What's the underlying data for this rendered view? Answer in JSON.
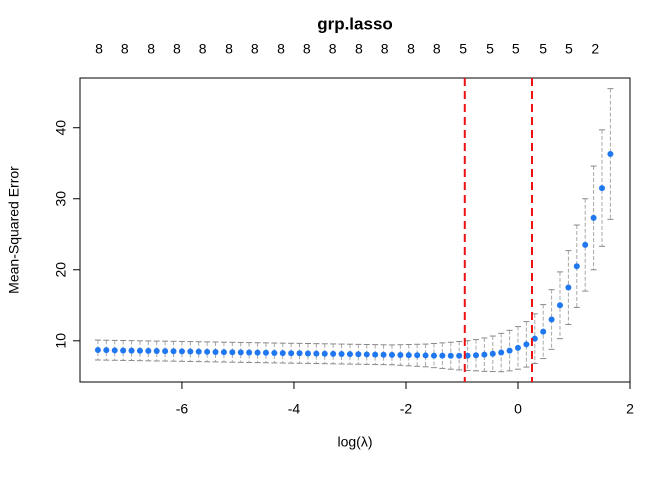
{
  "chart_data": {
    "type": "errorbar",
    "title": "grp.lasso",
    "x_label": "log(λ)",
    "y_label": "Mean-Squared Error",
    "xlim": [
      -7.82,
      2
    ],
    "ylim": [
      4.2,
      47.0
    ],
    "xticks": [
      -6,
      -4,
      -2,
      0,
      2
    ],
    "yticks": [
      10,
      20,
      30,
      40
    ],
    "top_ticks": [
      {
        "value": -7.48,
        "label": "8"
      },
      {
        "value": -7.02,
        "label": "8"
      },
      {
        "value": -6.55,
        "label": "8"
      },
      {
        "value": -6.09,
        "label": "8"
      },
      {
        "value": -5.63,
        "label": "8"
      },
      {
        "value": -5.16,
        "label": "8"
      },
      {
        "value": -4.7,
        "label": "8"
      },
      {
        "value": -4.23,
        "label": "8"
      },
      {
        "value": -3.77,
        "label": "8"
      },
      {
        "value": -3.31,
        "label": "8"
      },
      {
        "value": -2.84,
        "label": "8"
      },
      {
        "value": -2.38,
        "label": "8"
      },
      {
        "value": -1.91,
        "label": "8"
      },
      {
        "value": -1.45,
        "label": "8"
      },
      {
        "value": -0.98,
        "label": "5"
      },
      {
        "value": -0.5,
        "label": "5"
      },
      {
        "value": -0.04,
        "label": "5"
      },
      {
        "value": 0.45,
        "label": "5"
      },
      {
        "value": 0.91,
        "label": "5"
      },
      {
        "value": 1.38,
        "label": "2"
      }
    ],
    "vlines": [
      -0.95,
      0.25
    ],
    "vline_color": "#ee1111",
    "color": "#1f78f0",
    "error_color": "#a8a8a8",
    "x": [
      -7.5,
      -7.35,
      -7.2,
      -7.05,
      -6.9,
      -6.75,
      -6.6,
      -6.45,
      -6.3,
      -6.15,
      -6.0,
      -5.85,
      -5.7,
      -5.55,
      -5.4,
      -5.25,
      -5.1,
      -4.95,
      -4.8,
      -4.65,
      -4.5,
      -4.35,
      -4.2,
      -4.05,
      -3.9,
      -3.75,
      -3.6,
      -3.45,
      -3.3,
      -3.15,
      -3.0,
      -2.85,
      -2.7,
      -2.55,
      -2.4,
      -2.25,
      -2.1,
      -1.95,
      -1.8,
      -1.65,
      -1.5,
      -1.35,
      -1.2,
      -1.05,
      -0.9,
      -0.75,
      -0.6,
      -0.45,
      -0.3,
      -0.15,
      0.0,
      0.15,
      0.3,
      0.45,
      0.6,
      0.75,
      0.9,
      1.05,
      1.2,
      1.35,
      1.5,
      1.65
    ],
    "values": [
      8.7,
      8.68,
      8.66,
      8.64,
      8.62,
      8.6,
      8.58,
      8.56,
      8.55,
      8.53,
      8.51,
      8.49,
      8.47,
      8.45,
      8.43,
      8.41,
      8.39,
      8.37,
      8.35,
      8.33,
      8.31,
      8.29,
      8.27,
      8.25,
      8.24,
      8.22,
      8.2,
      8.18,
      8.16,
      8.14,
      8.12,
      8.1,
      8.08,
      8.06,
      8.04,
      8.02,
      8.0,
      7.98,
      7.96,
      7.94,
      7.92,
      7.91,
      7.9,
      7.9,
      7.92,
      7.97,
      8.05,
      8.17,
      8.35,
      8.62,
      9.0,
      9.5,
      10.3,
      11.3,
      13.0,
      15.0,
      17.5,
      20.5,
      23.5,
      27.3,
      31.5,
      36.3
    ],
    "errors": [
      1.4,
      1.4,
      1.4,
      1.4,
      1.4,
      1.4,
      1.4,
      1.4,
      1.4,
      1.4,
      1.4,
      1.4,
      1.4,
      1.4,
      1.4,
      1.4,
      1.4,
      1.4,
      1.4,
      1.4,
      1.4,
      1.4,
      1.4,
      1.4,
      1.4,
      1.4,
      1.4,
      1.4,
      1.4,
      1.4,
      1.4,
      1.4,
      1.4,
      1.4,
      1.4,
      1.4,
      1.45,
      1.5,
      1.55,
      1.6,
      1.7,
      1.8,
      1.9,
      2.0,
      2.1,
      2.2,
      2.35,
      2.5,
      2.7,
      2.85,
      3.0,
      3.2,
      3.5,
      3.8,
      4.2,
      4.7,
      5.2,
      5.8,
      6.5,
      7.3,
      8.2,
      9.2
    ]
  }
}
